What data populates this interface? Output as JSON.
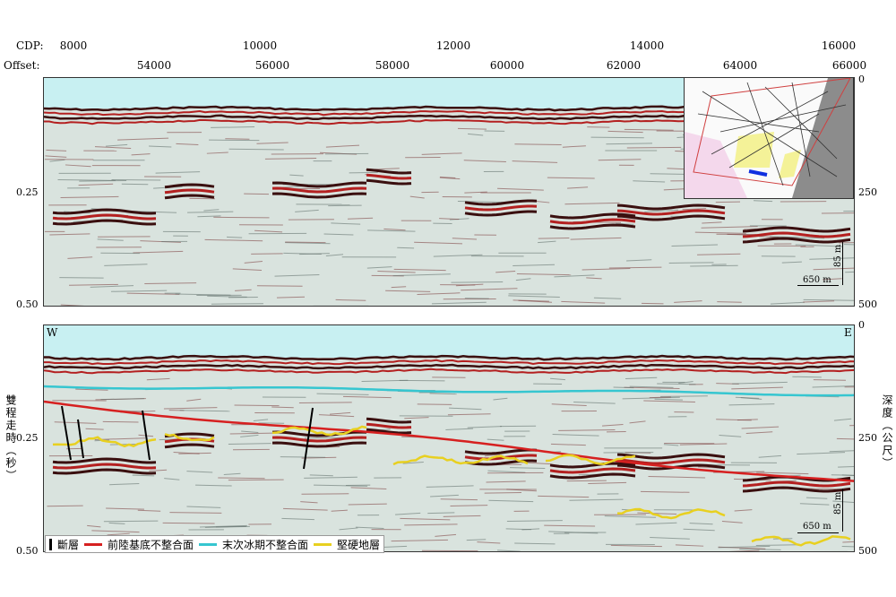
{
  "axis": {
    "cdp_label": "CDP:",
    "offset_label": "Offset:",
    "cdp_ticks": [
      "8000",
      "10000",
      "12000",
      "14000",
      "16000"
    ],
    "offset_ticks": [
      "54000",
      "56000",
      "58000",
      "60000",
      "62000",
      "64000",
      "66000"
    ],
    "time_ticks": [
      "0.25",
      "0.50"
    ],
    "depth_ticks": [
      "0",
      "250",
      "500"
    ],
    "y_left_title": "雙程走時（秒）",
    "y_right_title": "深度（公尺）"
  },
  "panels": {
    "top": {
      "scale_h": "650 m",
      "scale_v": "85 m"
    },
    "bottom": {
      "west": "W",
      "east": "E",
      "scale_h": "650 m",
      "scale_v": "85 m"
    }
  },
  "legend": {
    "items": [
      {
        "label": "斷層",
        "color": "#000000"
      },
      {
        "label": "前陸基底不整合面",
        "color": "#d62020"
      },
      {
        "label": "末次冰期不整合面",
        "color": "#36c6d0"
      },
      {
        "label": "堅硬地層",
        "color": "#e8d020"
      }
    ]
  },
  "colors": {
    "water": "#c8f0f2",
    "reflector_dark": "#3a0f0f",
    "reflector_red": "#b42020",
    "noise": "#d9e3de"
  }
}
